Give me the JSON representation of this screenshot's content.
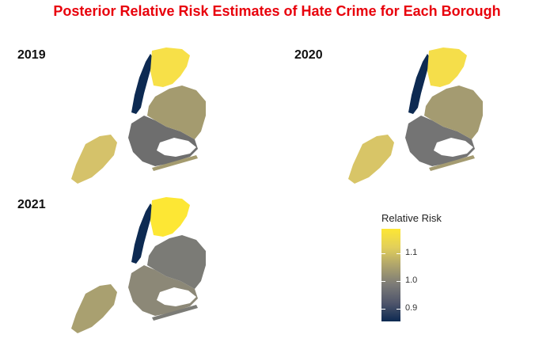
{
  "title": "Posterior Relative Risk Estimates of Hate Crime for Each Borough",
  "title_color": "#e8000b",
  "panels": [
    {
      "year": "2019",
      "colors": {
        "bronx": "#f7e048",
        "manhattan": "#0d2a52",
        "queens": "#a49b6f",
        "brooklyn": "#6e6e6e",
        "staten_island": "#d5c26a"
      }
    },
    {
      "year": "2020",
      "colors": {
        "bronx": "#f5de4a",
        "manhattan": "#0d2a52",
        "queens": "#a49b71",
        "brooklyn": "#747474",
        "staten_island": "#d8c567"
      }
    },
    {
      "year": "2021",
      "colors": {
        "bronx": "#fde734",
        "manhattan": "#0d2a52",
        "queens": "#7b7b76",
        "brooklyn": "#8c8877",
        "staten_island": "#a9a070"
      }
    }
  ],
  "legend": {
    "title": "Relative Risk",
    "ticks": [
      {
        "label": "1.1",
        "value": 1.1
      },
      {
        "label": "1.0",
        "value": 1.0
      },
      {
        "label": "0.9",
        "value": 0.9
      }
    ],
    "range": [
      0.855,
      1.19
    ],
    "colorscale": [
      "#0d2a52",
      "#50566b",
      "#7c7b77",
      "#ada36c",
      "#e2cf5a",
      "#fde734"
    ]
  }
}
